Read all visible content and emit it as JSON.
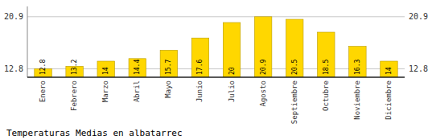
{
  "chart_data": {
    "type": "bar",
    "title": "Temperaturas Medias en albatarrec",
    "categories": [
      "Enero",
      "Febrero",
      "Marzo",
      "Abril",
      "Mayo",
      "Junio",
      "Julio",
      "Agosto",
      "Septiembre",
      "Octubre",
      "Noviembre",
      "Diciembre"
    ],
    "values": [
      12.8,
      13.2,
      14.0,
      14.4,
      15.7,
      17.6,
      20.0,
      20.9,
      20.5,
      18.5,
      16.3,
      14.0
    ],
    "color": "#FFD700",
    "ylim": [
      11.5,
      22.5
    ],
    "yticks": [
      12.8,
      20.9
    ],
    "grid": true,
    "data_labels": true
  }
}
